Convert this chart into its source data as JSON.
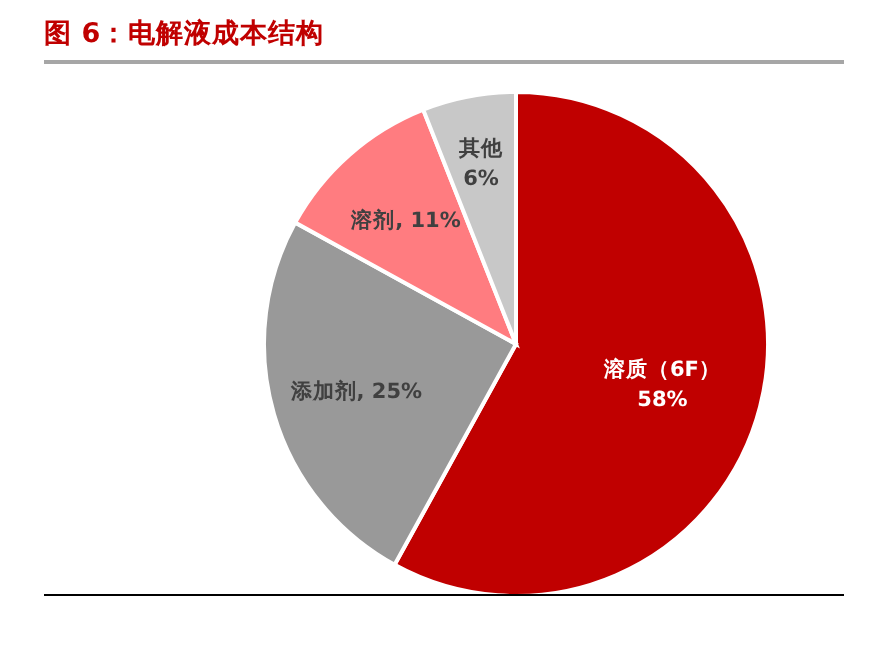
{
  "chart_data": {
    "type": "pie",
    "title": "图 6：电解液成本结构",
    "categories": [
      "溶质（6F）",
      "添加剂",
      "溶剂",
      "其他"
    ],
    "values": [
      58,
      25,
      11,
      6
    ],
    "value_labels": [
      "58%",
      "25%",
      "11%",
      "6%"
    ],
    "colors": [
      "#c00000",
      "#999999",
      "#ff7c80",
      "#c8c8c8"
    ],
    "legend": false
  }
}
